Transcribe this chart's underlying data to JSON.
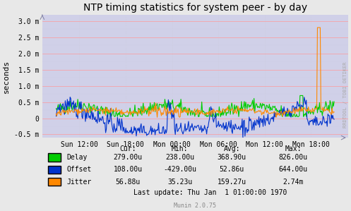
{
  "title": "NTP timing statistics for system peer - by day",
  "ylabel": "seconds",
  "bg_color": "#e8e8e8",
  "plot_bg_color": "#d0d0e8",
  "grid_color_major": "#ff9999",
  "grid_color_minor": "#ccccdd",
  "ylim": [
    -0.0006,
    0.0032
  ],
  "yticks": [
    -0.0005,
    0.0,
    0.0005,
    0.001,
    0.0015,
    0.002,
    0.0025,
    0.003
  ],
  "ytick_labels": [
    "-0.5 m",
    "0",
    "0.5 m",
    "1.0 m",
    "1.5 m",
    "2.0 m",
    "2.5 m",
    "3.0 m"
  ],
  "xtick_labels": [
    "Sun 12:00",
    "Sun 18:00",
    "Mon 00:00",
    "Mon 06:00",
    "Mon 12:00",
    "Mon 18:00"
  ],
  "delay_color": "#00cc00",
  "offset_color": "#0033cc",
  "jitter_color": "#ff8800",
  "watermark": "RRDTOOL / TOBI OETIKER",
  "munin_version": "Munin 2.0.75",
  "legend": {
    "Delay": {
      "cur": "279.00u",
      "min": "238.00u",
      "avg": "368.90u",
      "max": "826.00u"
    },
    "Offset": {
      "cur": "108.00u",
      "min": "-429.00u",
      "avg": "52.86u",
      "max": "644.00u"
    },
    "Jitter": {
      "cur": "56.88u",
      "min": "35.23u",
      "avg": "159.27u",
      "max": "2.74m"
    }
  },
  "last_update": "Last update: Thu Jan  1 01:00:00 1970"
}
